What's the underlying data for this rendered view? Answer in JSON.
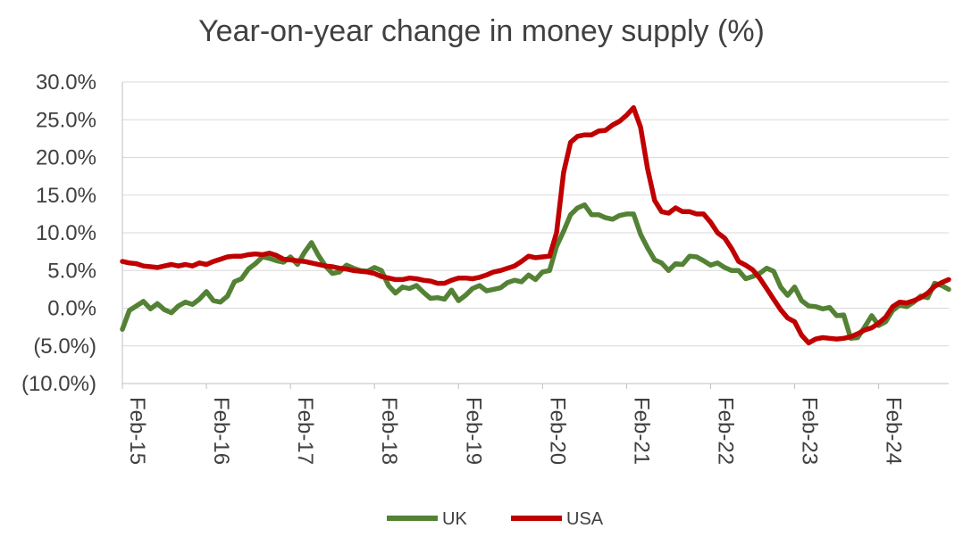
{
  "chart_data": {
    "type": "line",
    "title": "Year-on-year change in money supply (%)",
    "xlabel": "",
    "ylabel": "",
    "ylim": [
      -10,
      30
    ],
    "yticks": [
      {
        "value": 30,
        "label": "30.0%"
      },
      {
        "value": 25,
        "label": "25.0%"
      },
      {
        "value": 20,
        "label": "20.0%"
      },
      {
        "value": 15,
        "label": "15.0%"
      },
      {
        "value": 10,
        "label": "10.0%"
      },
      {
        "value": 5,
        "label": "5.0%"
      },
      {
        "value": 0,
        "label": "0.0%"
      },
      {
        "value": -5,
        "label": "(5.0%)"
      },
      {
        "value": -10,
        "label": "(10.0%)"
      }
    ],
    "xrange_months": [
      "2015-02",
      "2024-12"
    ],
    "xticks": [
      {
        "date": "2015-02",
        "label": "Feb-15"
      },
      {
        "date": "2016-02",
        "label": "Feb-16"
      },
      {
        "date": "2017-02",
        "label": "Feb-17"
      },
      {
        "date": "2018-02",
        "label": "Feb-18"
      },
      {
        "date": "2019-02",
        "label": "Feb-19"
      },
      {
        "date": "2020-02",
        "label": "Feb-20"
      },
      {
        "date": "2021-02",
        "label": "Feb-21"
      },
      {
        "date": "2022-02",
        "label": "Feb-22"
      },
      {
        "date": "2023-02",
        "label": "Feb-23"
      },
      {
        "date": "2024-02",
        "label": "Feb-24"
      }
    ],
    "grid": true,
    "legend_position": "bottom-center",
    "series": [
      {
        "name": "UK",
        "color": "#548235",
        "points": [
          [
            "2015-02",
            -2.8
          ],
          [
            "2015-03",
            -0.3
          ],
          [
            "2015-04",
            0.3
          ],
          [
            "2015-05",
            0.9
          ],
          [
            "2015-06",
            -0.1
          ],
          [
            "2015-07",
            0.6
          ],
          [
            "2015-08",
            -0.2
          ],
          [
            "2015-09",
            -0.6
          ],
          [
            "2015-10",
            0.3
          ],
          [
            "2015-11",
            0.8
          ],
          [
            "2015-12",
            0.5
          ],
          [
            "2016-01",
            1.2
          ],
          [
            "2016-02",
            2.2
          ],
          [
            "2016-03",
            1.0
          ],
          [
            "2016-04",
            0.8
          ],
          [
            "2016-05",
            1.6
          ],
          [
            "2016-06",
            3.5
          ],
          [
            "2016-07",
            3.9
          ],
          [
            "2016-08",
            5.2
          ],
          [
            "2016-09",
            5.9
          ],
          [
            "2016-10",
            6.8
          ],
          [
            "2016-11",
            6.6
          ],
          [
            "2016-12",
            6.3
          ],
          [
            "2017-01",
            6.1
          ],
          [
            "2017-02",
            6.8
          ],
          [
            "2017-03",
            5.8
          ],
          [
            "2017-04",
            7.4
          ],
          [
            "2017-05",
            8.7
          ],
          [
            "2017-06",
            7.0
          ],
          [
            "2017-07",
            5.6
          ],
          [
            "2017-08",
            4.6
          ],
          [
            "2017-09",
            4.8
          ],
          [
            "2017-10",
            5.7
          ],
          [
            "2017-11",
            5.3
          ],
          [
            "2017-12",
            5.0
          ],
          [
            "2018-01",
            4.9
          ],
          [
            "2018-02",
            5.4
          ],
          [
            "2018-03",
            5.0
          ],
          [
            "2018-04",
            3.0
          ],
          [
            "2018-05",
            2.0
          ],
          [
            "2018-06",
            2.8
          ],
          [
            "2018-07",
            2.6
          ],
          [
            "2018-08",
            3.0
          ],
          [
            "2018-09",
            2.1
          ],
          [
            "2018-10",
            1.3
          ],
          [
            "2018-11",
            1.4
          ],
          [
            "2018-12",
            1.2
          ],
          [
            "2019-01",
            2.4
          ],
          [
            "2019-02",
            1.0
          ],
          [
            "2019-03",
            1.7
          ],
          [
            "2019-04",
            2.6
          ],
          [
            "2019-05",
            3.0
          ],
          [
            "2019-06",
            2.3
          ],
          [
            "2019-07",
            2.5
          ],
          [
            "2019-08",
            2.7
          ],
          [
            "2019-09",
            3.4
          ],
          [
            "2019-10",
            3.7
          ],
          [
            "2019-11",
            3.5
          ],
          [
            "2019-12",
            4.4
          ],
          [
            "2020-01",
            3.8
          ],
          [
            "2020-02",
            4.8
          ],
          [
            "2020-03",
            5.0
          ],
          [
            "2020-04",
            8.2
          ],
          [
            "2020-05",
            10.2
          ],
          [
            "2020-06",
            12.4
          ],
          [
            "2020-07",
            13.3
          ],
          [
            "2020-08",
            13.7
          ],
          [
            "2020-09",
            12.4
          ],
          [
            "2020-10",
            12.4
          ],
          [
            "2020-11",
            12.0
          ],
          [
            "2020-12",
            11.8
          ],
          [
            "2021-01",
            12.3
          ],
          [
            "2021-02",
            12.5
          ],
          [
            "2021-03",
            12.5
          ],
          [
            "2021-04",
            9.8
          ],
          [
            "2021-05",
            8.0
          ],
          [
            "2021-06",
            6.4
          ],
          [
            "2021-07",
            6.0
          ],
          [
            "2021-08",
            5.0
          ],
          [
            "2021-09",
            5.9
          ],
          [
            "2021-10",
            5.8
          ],
          [
            "2021-11",
            6.9
          ],
          [
            "2021-12",
            6.8
          ],
          [
            "2022-01",
            6.3
          ],
          [
            "2022-02",
            5.7
          ],
          [
            "2022-03",
            6.0
          ],
          [
            "2022-04",
            5.4
          ],
          [
            "2022-05",
            5.0
          ],
          [
            "2022-06",
            5.0
          ],
          [
            "2022-07",
            3.9
          ],
          [
            "2022-08",
            4.2
          ],
          [
            "2022-09",
            4.6
          ],
          [
            "2022-10",
            5.3
          ],
          [
            "2022-11",
            4.9
          ],
          [
            "2022-12",
            2.8
          ],
          [
            "2023-01",
            1.7
          ],
          [
            "2023-02",
            2.8
          ],
          [
            "2023-03",
            1.0
          ],
          [
            "2023-04",
            0.3
          ],
          [
            "2023-05",
            0.2
          ],
          [
            "2023-06",
            -0.1
          ],
          [
            "2023-07",
            0.1
          ],
          [
            "2023-08",
            -1.0
          ],
          [
            "2023-09",
            -0.9
          ],
          [
            "2023-10",
            -4.0
          ],
          [
            "2023-11",
            -3.9
          ],
          [
            "2023-12",
            -2.5
          ],
          [
            "2024-01",
            -1.0
          ],
          [
            "2024-02",
            -2.3
          ],
          [
            "2024-03",
            -1.8
          ],
          [
            "2024-04",
            -0.3
          ],
          [
            "2024-05",
            0.4
          ],
          [
            "2024-06",
            0.2
          ],
          [
            "2024-07",
            0.8
          ],
          [
            "2024-08",
            1.6
          ],
          [
            "2024-09",
            1.4
          ],
          [
            "2024-10",
            3.3
          ],
          [
            "2024-11",
            3.0
          ],
          [
            "2024-12",
            2.5
          ]
        ]
      },
      {
        "name": "USA",
        "color": "#c00000",
        "points": [
          [
            "2015-02",
            6.2
          ],
          [
            "2015-03",
            6.0
          ],
          [
            "2015-04",
            5.9
          ],
          [
            "2015-05",
            5.6
          ],
          [
            "2015-06",
            5.5
          ],
          [
            "2015-07",
            5.4
          ],
          [
            "2015-08",
            5.6
          ],
          [
            "2015-09",
            5.8
          ],
          [
            "2015-10",
            5.6
          ],
          [
            "2015-11",
            5.8
          ],
          [
            "2015-12",
            5.6
          ],
          [
            "2016-01",
            6.0
          ],
          [
            "2016-02",
            5.8
          ],
          [
            "2016-03",
            6.2
          ],
          [
            "2016-04",
            6.5
          ],
          [
            "2016-05",
            6.8
          ],
          [
            "2016-06",
            6.9
          ],
          [
            "2016-07",
            6.9
          ],
          [
            "2016-08",
            7.1
          ],
          [
            "2016-09",
            7.2
          ],
          [
            "2016-10",
            7.1
          ],
          [
            "2016-11",
            7.3
          ],
          [
            "2016-12",
            7.0
          ],
          [
            "2017-01",
            6.5
          ],
          [
            "2017-02",
            6.4
          ],
          [
            "2017-03",
            6.3
          ],
          [
            "2017-04",
            6.2
          ],
          [
            "2017-05",
            6.0
          ],
          [
            "2017-06",
            5.8
          ],
          [
            "2017-07",
            5.6
          ],
          [
            "2017-08",
            5.5
          ],
          [
            "2017-09",
            5.3
          ],
          [
            "2017-10",
            5.2
          ],
          [
            "2017-11",
            5.0
          ],
          [
            "2017-12",
            4.9
          ],
          [
            "2018-01",
            4.8
          ],
          [
            "2018-02",
            4.6
          ],
          [
            "2018-03",
            4.2
          ],
          [
            "2018-04",
            4.0
          ],
          [
            "2018-05",
            3.8
          ],
          [
            "2018-06",
            3.8
          ],
          [
            "2018-07",
            4.0
          ],
          [
            "2018-08",
            3.9
          ],
          [
            "2018-09",
            3.7
          ],
          [
            "2018-10",
            3.6
          ],
          [
            "2018-11",
            3.3
          ],
          [
            "2018-12",
            3.3
          ],
          [
            "2019-01",
            3.7
          ],
          [
            "2019-02",
            4.0
          ],
          [
            "2019-03",
            4.0
          ],
          [
            "2019-04",
            3.9
          ],
          [
            "2019-05",
            4.1
          ],
          [
            "2019-06",
            4.4
          ],
          [
            "2019-07",
            4.8
          ],
          [
            "2019-08",
            5.0
          ],
          [
            "2019-09",
            5.3
          ],
          [
            "2019-10",
            5.6
          ],
          [
            "2019-11",
            6.2
          ],
          [
            "2019-12",
            6.9
          ],
          [
            "2020-01",
            6.7
          ],
          [
            "2020-02",
            6.8
          ],
          [
            "2020-03",
            6.9
          ],
          [
            "2020-04",
            10.0
          ],
          [
            "2020-05",
            18.0
          ],
          [
            "2020-06",
            22.0
          ],
          [
            "2020-07",
            22.8
          ],
          [
            "2020-08",
            23.0
          ],
          [
            "2020-09",
            23.0
          ],
          [
            "2020-10",
            23.5
          ],
          [
            "2020-11",
            23.6
          ],
          [
            "2020-12",
            24.3
          ],
          [
            "2021-01",
            24.8
          ],
          [
            "2021-02",
            25.6
          ],
          [
            "2021-03",
            26.6
          ],
          [
            "2021-04",
            24.0
          ],
          [
            "2021-05",
            18.5
          ],
          [
            "2021-06",
            14.3
          ],
          [
            "2021-07",
            12.8
          ],
          [
            "2021-08",
            12.6
          ],
          [
            "2021-09",
            13.3
          ],
          [
            "2021-10",
            12.8
          ],
          [
            "2021-11",
            12.8
          ],
          [
            "2021-12",
            12.5
          ],
          [
            "2022-01",
            12.5
          ],
          [
            "2022-02",
            11.4
          ],
          [
            "2022-03",
            10.0
          ],
          [
            "2022-04",
            9.3
          ],
          [
            "2022-05",
            7.9
          ],
          [
            "2022-06",
            6.2
          ],
          [
            "2022-07",
            5.7
          ],
          [
            "2022-08",
            5.1
          ],
          [
            "2022-09",
            4.0
          ],
          [
            "2022-10",
            2.6
          ],
          [
            "2022-11",
            1.2
          ],
          [
            "2022-12",
            -0.2
          ],
          [
            "2023-01",
            -1.3
          ],
          [
            "2023-02",
            -1.8
          ],
          [
            "2023-03",
            -3.6
          ],
          [
            "2023-04",
            -4.6
          ],
          [
            "2023-05",
            -4.1
          ],
          [
            "2023-06",
            -3.9
          ],
          [
            "2023-07",
            -4.0
          ],
          [
            "2023-08",
            -4.1
          ],
          [
            "2023-09",
            -4.0
          ],
          [
            "2023-10",
            -3.8
          ],
          [
            "2023-11",
            -3.4
          ],
          [
            "2023-12",
            -2.9
          ],
          [
            "2024-01",
            -2.6
          ],
          [
            "2024-02",
            -2.0
          ],
          [
            "2024-03",
            -1.2
          ],
          [
            "2024-04",
            0.2
          ],
          [
            "2024-05",
            0.8
          ],
          [
            "2024-06",
            0.7
          ],
          [
            "2024-07",
            1.0
          ],
          [
            "2024-08",
            1.4
          ],
          [
            "2024-09",
            2.0
          ],
          [
            "2024-10",
            2.9
          ],
          [
            "2024-11",
            3.4
          ],
          [
            "2024-12",
            3.8
          ]
        ]
      }
    ]
  }
}
